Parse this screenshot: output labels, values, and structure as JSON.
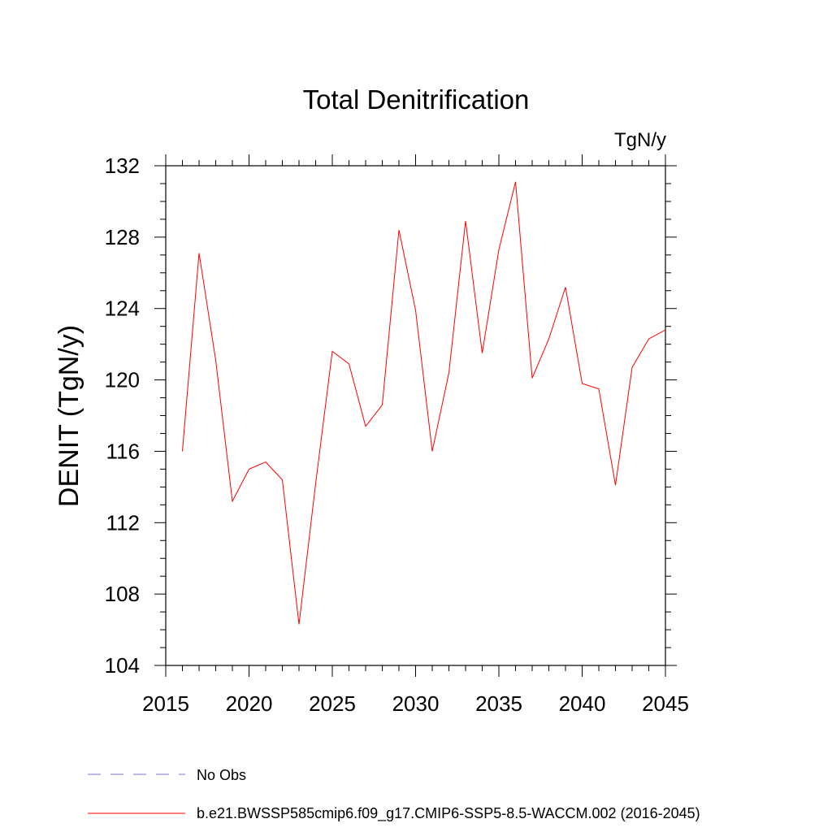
{
  "chart_data": {
    "type": "line",
    "title": "Total Denitrification",
    "units_label": "TgN/y",
    "ylabel": "DENIT  (TgN/y)",
    "xlabel": "",
    "xlim": [
      2015,
      2045
    ],
    "ylim": [
      104,
      132
    ],
    "x_ticks": [
      2015,
      2020,
      2025,
      2030,
      2035,
      2040,
      2045
    ],
    "y_ticks": [
      104,
      108,
      112,
      116,
      120,
      124,
      128,
      132
    ],
    "grid": false,
    "series": [
      {
        "name": "b.e21.BWSSP585cmip6.f09_g17.CMIP6-SSP5-8.5-WACCM.002 (2016-2045)",
        "color": "#ff0000",
        "x": [
          2016,
          2017,
          2018,
          2019,
          2020,
          2021,
          2022,
          2023,
          2024,
          2025,
          2026,
          2027,
          2028,
          2029,
          2030,
          2031,
          2032,
          2033,
          2034,
          2035,
          2036,
          2037,
          2038,
          2039,
          2040,
          2041,
          2042,
          2043,
          2044,
          2045
        ],
        "values": [
          116.0,
          127.1,
          121.1,
          113.2,
          115.0,
          115.4,
          114.4,
          106.3,
          114.2,
          121.6,
          120.9,
          117.4,
          118.6,
          128.4,
          123.9,
          116.0,
          120.4,
          128.9,
          121.5,
          127.3,
          131.1,
          120.1,
          122.3,
          125.2,
          119.8,
          119.5,
          114.1,
          120.7,
          122.3,
          122.8
        ]
      }
    ],
    "legend": {
      "placement": "bottom-left",
      "entries": [
        {
          "label": "No Obs",
          "color": "#7b73c9",
          "style": "dashed"
        },
        {
          "label": "b.e21.BWSSP585cmip6.f09_g17.CMIP6-SSP5-8.5-WACCM.002 (2016-2045)",
          "color": "#ff0000",
          "style": "solid"
        }
      ]
    }
  }
}
